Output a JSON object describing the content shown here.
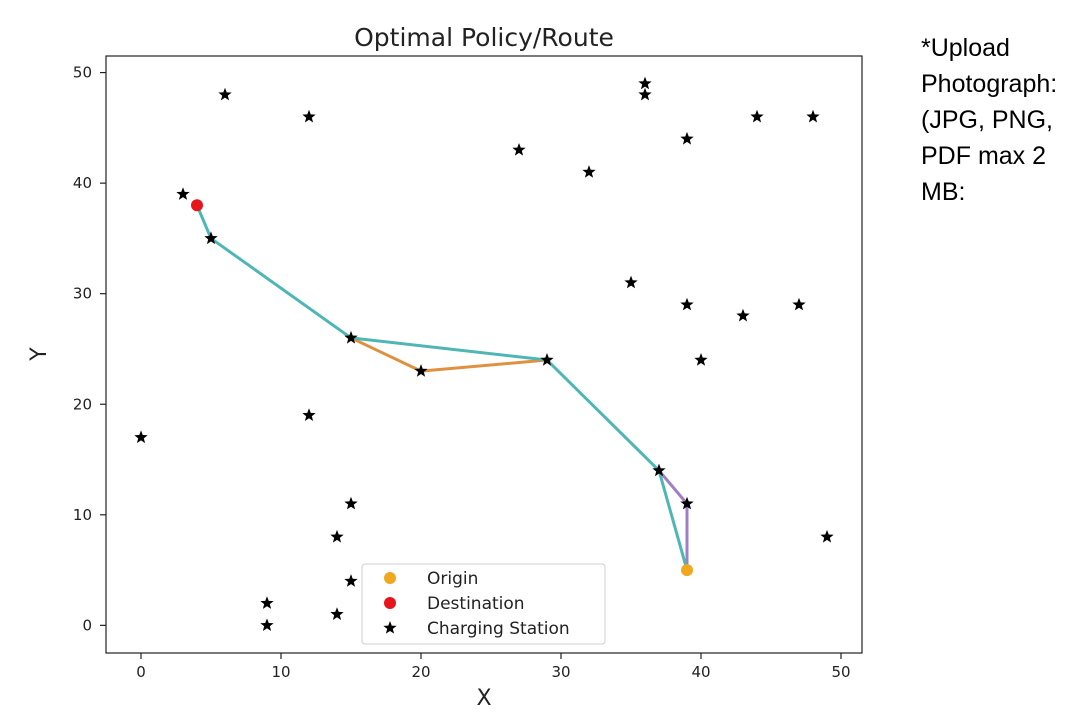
{
  "side_note": {
    "lines": [
      "*Upload",
      "Photograph:",
      "(JPG, PNG,",
      "PDF max 2",
      "MB:"
    ]
  },
  "chart_data": {
    "type": "scatter",
    "title": "Optimal Policy/Route",
    "xlabel": "X",
    "ylabel": "Y",
    "xlim": [
      -2.5,
      51.5
    ],
    "ylim": [
      -2.5,
      51.5
    ],
    "xticks": [
      0,
      10,
      20,
      30,
      40,
      50
    ],
    "yticks": [
      0,
      10,
      20,
      30,
      40,
      50
    ],
    "grid": false,
    "legend_position": "bottom-center",
    "legend": [
      {
        "label": "Origin",
        "marker": "dot",
        "color": "#f0a81e"
      },
      {
        "label": "Destination",
        "marker": "dot",
        "color": "#e8141c"
      },
      {
        "label": "Charging Station",
        "marker": "star",
        "color": "#000000"
      }
    ],
    "origin": {
      "x": 39,
      "y": 5
    },
    "destination": {
      "x": 4,
      "y": 38
    },
    "charging_stations": [
      [
        0,
        17
      ],
      [
        3,
        39
      ],
      [
        5,
        35
      ],
      [
        6,
        48
      ],
      [
        9,
        2
      ],
      [
        9,
        0
      ],
      [
        12,
        46
      ],
      [
        12,
        19
      ],
      [
        14,
        8
      ],
      [
        14,
        1
      ],
      [
        15,
        26
      ],
      [
        15,
        11
      ],
      [
        15,
        4
      ],
      [
        20,
        23
      ],
      [
        27,
        43
      ],
      [
        29,
        24
      ],
      [
        32,
        41
      ],
      [
        35,
        31
      ],
      [
        36,
        49
      ],
      [
        36,
        48
      ],
      [
        37,
        14
      ],
      [
        39,
        44
      ],
      [
        39,
        29
      ],
      [
        39,
        11
      ],
      [
        40,
        24
      ],
      [
        43,
        28
      ],
      [
        44,
        46
      ],
      [
        47,
        29
      ],
      [
        48,
        46
      ],
      [
        49,
        8
      ]
    ],
    "routes": [
      {
        "color": "#e0913f",
        "points": [
          [
            15,
            26
          ],
          [
            20,
            23
          ],
          [
            29,
            24
          ]
        ]
      },
      {
        "color": "#9f7fc6",
        "points": [
          [
            37,
            14
          ],
          [
            39,
            11
          ],
          [
            39,
            5
          ]
        ]
      },
      {
        "color": "#4fb6b6",
        "points": [
          [
            39,
            5
          ],
          [
            37,
            14
          ],
          [
            29,
            24
          ],
          [
            15,
            26
          ],
          [
            5,
            35
          ],
          [
            4,
            38
          ]
        ]
      }
    ]
  }
}
